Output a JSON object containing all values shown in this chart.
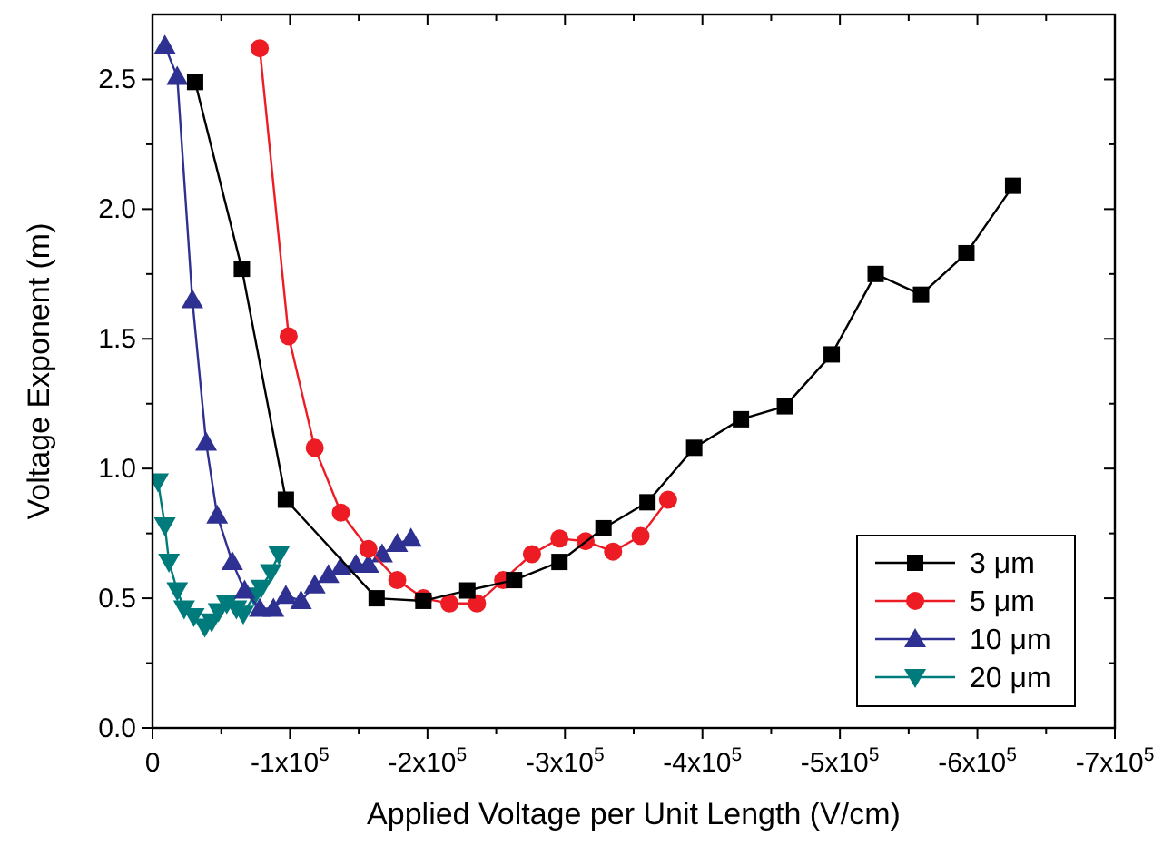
{
  "chart_data": {
    "type": "line",
    "xlabel": "Applied Voltage per Unit Length (V/cm)",
    "ylabel": "Voltage Exponent (m)",
    "xlim": [
      0,
      -700000
    ],
    "ylim": [
      0,
      2.75
    ],
    "xticks": [
      {
        "value": 0,
        "label": "0"
      },
      {
        "value": -50000,
        "label": null
      },
      {
        "value": -100000,
        "label": "-1x10$^{5}$"
      },
      {
        "value": -150000,
        "label": null
      },
      {
        "value": -200000,
        "label": "-2x10$^{5}$"
      },
      {
        "value": -250000,
        "label": null
      },
      {
        "value": -300000,
        "label": "-3x10$^{5}$"
      },
      {
        "value": -350000,
        "label": null
      },
      {
        "value": -400000,
        "label": "-4x10$^{5}$"
      },
      {
        "value": -450000,
        "label": null
      },
      {
        "value": -500000,
        "label": "-5x10$^{5}$"
      },
      {
        "value": -550000,
        "label": null
      },
      {
        "value": -600000,
        "label": "-6x10$^{5}$"
      },
      {
        "value": -650000,
        "label": null
      },
      {
        "value": -700000,
        "label": "-7x10$^{5}$"
      }
    ],
    "yticks": [
      {
        "value": 0,
        "label": "0.0"
      },
      {
        "value": 0.25,
        "label": null
      },
      0.5,
      {
        "value": 0.75,
        "label": null
      },
      {
        "value": 1,
        "label": "1.0"
      },
      {
        "value": 1.25,
        "label": null
      },
      1.5,
      {
        "value": 1.75,
        "label": null
      },
      {
        "value": 2,
        "label": "2.0"
      },
      {
        "value": 2.25,
        "label": null
      },
      2.5
    ],
    "grid": false,
    "legend": "bottom right",
    "line_style": "solid",
    "series": [
      {
        "name": "3 μm",
        "color": "#000000",
        "marker": "square",
        "x": [
          -31000,
          -65000,
          -97000,
          -163000,
          -197000,
          -229000,
          -263000,
          -296000,
          -328000,
          -360000,
          -394000,
          -428000,
          -460000,
          -494000,
          -526000,
          -559000,
          -592000,
          -626000
        ],
        "values": [
          2.49,
          1.77,
          0.88,
          0.5,
          0.49,
          0.53,
          0.57,
          0.64,
          0.77,
          0.87,
          1.08,
          1.19,
          1.24,
          1.44,
          1.75,
          1.67,
          1.83,
          2.09
        ]
      },
      {
        "name": "5 μm",
        "color": "#ed1c24",
        "marker": "circle",
        "x": [
          -78000,
          -99000,
          -118000,
          -137000,
          -157000,
          -178000,
          -197000,
          -216000,
          -236000,
          -255000,
          -276000,
          -296000,
          -315000,
          -335000,
          -355000,
          -375000
        ],
        "values": [
          2.62,
          1.51,
          1.08,
          0.83,
          0.69,
          0.57,
          0.5,
          0.48,
          0.48,
          0.57,
          0.67,
          0.73,
          0.72,
          0.68,
          0.74,
          0.88
        ]
      },
      {
        "name": "10 μm",
        "color": "#2e3192",
        "marker": "triangle",
        "x": [
          -9000,
          -18000,
          -29000,
          -39000,
          -47000,
          -58000,
          -67000,
          -78000,
          -88000,
          -97000,
          -108000,
          -118000,
          -128000,
          -137000,
          -148000,
          -157000,
          -167000,
          -178000,
          -188000
        ],
        "values": [
          2.63,
          2.51,
          1.65,
          1.1,
          0.82,
          0.64,
          0.53,
          0.46,
          0.46,
          0.51,
          0.49,
          0.55,
          0.59,
          0.62,
          0.63,
          0.63,
          0.67,
          0.71,
          0.73
        ]
      },
      {
        "name": "20 μm",
        "color": "#007b7b",
        "marker": "triangle-down",
        "x": [
          -4000,
          -9000,
          -12000,
          -18000,
          -23000,
          -30000,
          -38000,
          -43000,
          -48000,
          -54000,
          -61000,
          -66000,
          -74000,
          -79000,
          -86000,
          -92000
        ],
        "values": [
          0.95,
          0.78,
          0.64,
          0.53,
          0.46,
          0.43,
          0.39,
          0.41,
          0.45,
          0.48,
          0.46,
          0.44,
          0.51,
          0.54,
          0.6,
          0.67
        ]
      }
    ]
  }
}
